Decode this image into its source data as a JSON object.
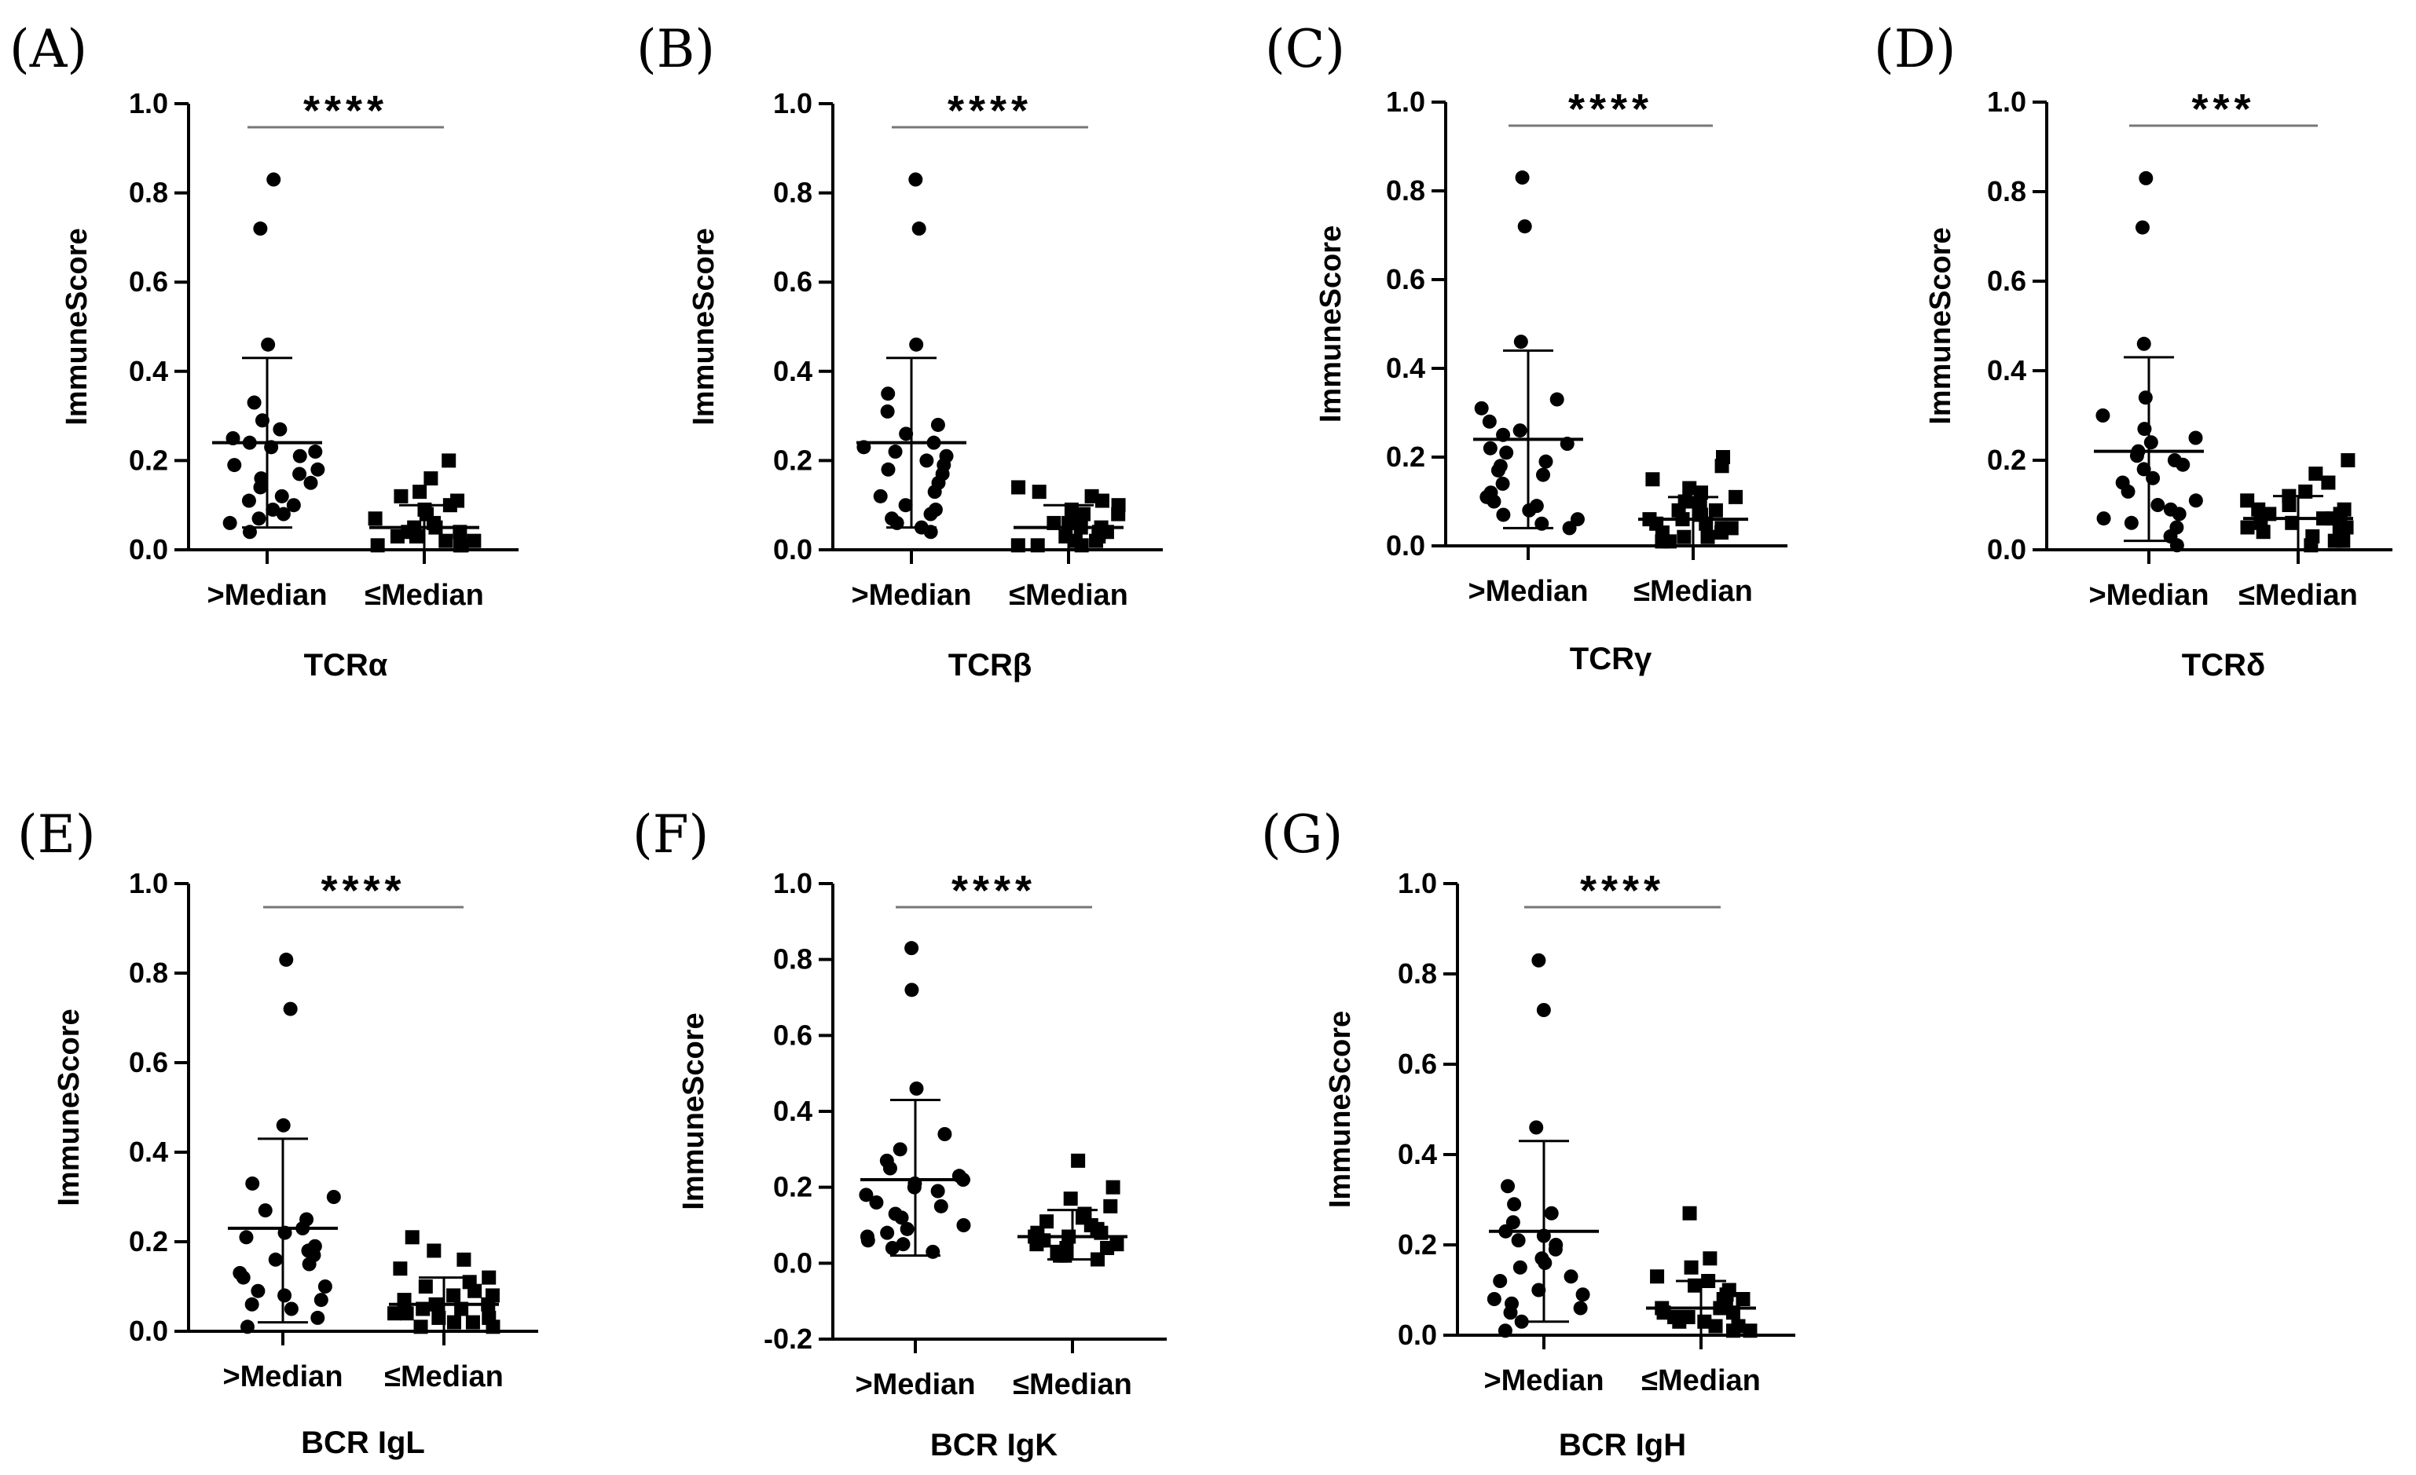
{
  "chart_data": [
    {
      "panel": "(A)",
      "type": "scatter",
      "ylabel": "ImmuneScore",
      "xlabel": "TCRα",
      "categories": [
        ">Median",
        "≤Median"
      ],
      "ylim": [
        0,
        1.0
      ],
      "yticks": [
        "0.0",
        "0.2",
        "0.4",
        "0.6",
        "0.8",
        "1.0"
      ],
      "significance": "****",
      "series": [
        {
          "name": ">Median",
          "marker": "circle",
          "mean": 0.24,
          "sd_low": 0.05,
          "sd_high": 0.43,
          "points": [
            0.83,
            0.72,
            0.46,
            0.33,
            0.29,
            0.27,
            0.25,
            0.24,
            0.23,
            0.22,
            0.21,
            0.19,
            0.18,
            0.17,
            0.16,
            0.15,
            0.14,
            0.12,
            0.11,
            0.1,
            0.09,
            0.08,
            0.07,
            0.06,
            0.04
          ]
        },
        {
          "name": "≤Median",
          "marker": "square",
          "mean": 0.05,
          "sd_low": 0.0,
          "sd_high": 0.1,
          "points": [
            0.2,
            0.16,
            0.13,
            0.12,
            0.11,
            0.1,
            0.09,
            0.08,
            0.08,
            0.07,
            0.06,
            0.05,
            0.05,
            0.04,
            0.04,
            0.03,
            0.03,
            0.02,
            0.02,
            0.01,
            0.01,
            0.01
          ]
        }
      ]
    },
    {
      "panel": "(B)",
      "type": "scatter",
      "ylabel": "ImmuneScore",
      "xlabel": "TCRβ",
      "categories": [
        ">Median",
        "≤Median"
      ],
      "ylim": [
        0,
        1.0
      ],
      "yticks": [
        "0.0",
        "0.2",
        "0.4",
        "0.6",
        "0.8",
        "1.0"
      ],
      "significance": "****",
      "series": [
        {
          "name": ">Median",
          "marker": "circle",
          "mean": 0.24,
          "sd_low": 0.05,
          "sd_high": 0.43,
          "points": [
            0.83,
            0.72,
            0.46,
            0.35,
            0.31,
            0.28,
            0.26,
            0.24,
            0.23,
            0.22,
            0.21,
            0.2,
            0.19,
            0.18,
            0.17,
            0.15,
            0.13,
            0.12,
            0.1,
            0.09,
            0.08,
            0.07,
            0.06,
            0.05,
            0.04
          ]
        },
        {
          "name": "≤Median",
          "marker": "square",
          "mean": 0.05,
          "sd_low": 0.0,
          "sd_high": 0.1,
          "points": [
            0.14,
            0.13,
            0.12,
            0.11,
            0.1,
            0.09,
            0.08,
            0.08,
            0.07,
            0.06,
            0.06,
            0.05,
            0.05,
            0.04,
            0.04,
            0.03,
            0.03,
            0.02,
            0.02,
            0.01,
            0.01,
            0.01
          ]
        }
      ]
    },
    {
      "panel": "(C)",
      "type": "scatter",
      "ylabel": "ImmuneScore",
      "xlabel": "TCRγ",
      "categories": [
        ">Median",
        "≤Median"
      ],
      "ylim": [
        0,
        1.0
      ],
      "yticks": [
        "0.0",
        "0.2",
        "0.4",
        "0.6",
        "0.8",
        "1.0"
      ],
      "significance": "****",
      "series": [
        {
          "name": ">Median",
          "marker": "circle",
          "mean": 0.24,
          "sd_low": 0.04,
          "sd_high": 0.44,
          "points": [
            0.83,
            0.72,
            0.46,
            0.33,
            0.31,
            0.28,
            0.26,
            0.25,
            0.23,
            0.22,
            0.21,
            0.19,
            0.18,
            0.17,
            0.16,
            0.14,
            0.12,
            0.11,
            0.1,
            0.09,
            0.08,
            0.07,
            0.06,
            0.05,
            0.04
          ]
        },
        {
          "name": "≤Median",
          "marker": "square",
          "mean": 0.06,
          "sd_low": 0.0,
          "sd_high": 0.11,
          "points": [
            0.2,
            0.18,
            0.15,
            0.13,
            0.12,
            0.11,
            0.1,
            0.09,
            0.08,
            0.08,
            0.07,
            0.06,
            0.06,
            0.05,
            0.05,
            0.04,
            0.04,
            0.03,
            0.03,
            0.02,
            0.02,
            0.01,
            0.01
          ]
        }
      ]
    },
    {
      "panel": "(D)",
      "type": "scatter",
      "ylabel": "ImmuneScore",
      "xlabel": "TCRδ",
      "categories": [
        ">Median",
        "≤Median"
      ],
      "ylim": [
        0,
        1.0
      ],
      "yticks": [
        "0.0",
        "0.2",
        "0.4",
        "0.6",
        "0.8",
        "1.0"
      ],
      "significance": "***",
      "series": [
        {
          "name": ">Median",
          "marker": "circle",
          "mean": 0.22,
          "sd_low": 0.02,
          "sd_high": 0.43,
          "points": [
            0.83,
            0.72,
            0.46,
            0.34,
            0.3,
            0.27,
            0.25,
            0.24,
            0.22,
            0.21,
            0.2,
            0.19,
            0.18,
            0.16,
            0.15,
            0.13,
            0.11,
            0.1,
            0.09,
            0.08,
            0.07,
            0.06,
            0.05,
            0.03,
            0.01
          ]
        },
        {
          "name": "≤Median",
          "marker": "square",
          "mean": 0.07,
          "sd_low": 0.0,
          "sd_high": 0.12,
          "points": [
            0.2,
            0.17,
            0.15,
            0.13,
            0.12,
            0.11,
            0.1,
            0.09,
            0.09,
            0.08,
            0.08,
            0.07,
            0.07,
            0.06,
            0.06,
            0.05,
            0.05,
            0.04,
            0.04,
            0.03,
            0.02,
            0.02,
            0.01
          ]
        }
      ]
    },
    {
      "panel": "(E)",
      "type": "scatter",
      "ylabel": "ImmuneScore",
      "xlabel": "BCR IgL",
      "categories": [
        ">Median",
        "≤Median"
      ],
      "ylim": [
        0,
        1.0
      ],
      "yticks": [
        "0.0",
        "0.2",
        "0.4",
        "0.6",
        "0.8",
        "1.0"
      ],
      "significance": "****",
      "series": [
        {
          "name": ">Median",
          "marker": "circle",
          "mean": 0.23,
          "sd_low": 0.02,
          "sd_high": 0.43,
          "points": [
            0.83,
            0.72,
            0.46,
            0.33,
            0.3,
            0.27,
            0.25,
            0.23,
            0.22,
            0.21,
            0.19,
            0.18,
            0.17,
            0.16,
            0.15,
            0.13,
            0.12,
            0.1,
            0.09,
            0.08,
            0.07,
            0.06,
            0.05,
            0.03,
            0.01
          ]
        },
        {
          "name": "≤Median",
          "marker": "square",
          "mean": 0.06,
          "sd_low": 0.0,
          "sd_high": 0.12,
          "points": [
            0.21,
            0.18,
            0.16,
            0.14,
            0.12,
            0.11,
            0.1,
            0.09,
            0.08,
            0.08,
            0.07,
            0.06,
            0.06,
            0.05,
            0.05,
            0.04,
            0.04,
            0.03,
            0.03,
            0.02,
            0.02,
            0.01,
            0.01
          ]
        }
      ]
    },
    {
      "panel": "(F)",
      "type": "scatter",
      "ylabel": "ImmuneScore",
      "xlabel": "BCR IgK",
      "categories": [
        ">Median",
        "≤Median"
      ],
      "ylim": [
        -0.2,
        1.0
      ],
      "yticks": [
        "-0.2",
        "0.0",
        "0.2",
        "0.4",
        "0.6",
        "0.8",
        "1.0"
      ],
      "significance": "****",
      "series": [
        {
          "name": ">Median",
          "marker": "circle",
          "mean": 0.22,
          "sd_low": 0.02,
          "sd_high": 0.43,
          "points": [
            0.83,
            0.72,
            0.46,
            0.34,
            0.3,
            0.27,
            0.25,
            0.23,
            0.22,
            0.21,
            0.2,
            0.19,
            0.18,
            0.16,
            0.15,
            0.13,
            0.12,
            0.1,
            0.09,
            0.08,
            0.07,
            0.06,
            0.05,
            0.04,
            0.03
          ]
        },
        {
          "name": "≤Median",
          "marker": "square",
          "mean": 0.07,
          "sd_low": 0.01,
          "sd_high": 0.14,
          "points": [
            0.27,
            0.2,
            0.17,
            0.15,
            0.13,
            0.12,
            0.11,
            0.1,
            0.09,
            0.08,
            0.08,
            0.07,
            0.07,
            0.06,
            0.06,
            0.05,
            0.05,
            0.04,
            0.04,
            0.03,
            0.02,
            0.02,
            0.01
          ]
        }
      ]
    },
    {
      "panel": "(G)",
      "type": "scatter",
      "ylabel": "ImmuneScore",
      "xlabel": "BCR IgH",
      "categories": [
        ">Median",
        "≤Median"
      ],
      "ylim": [
        0,
        1.0
      ],
      "yticks": [
        "0.0",
        "0.2",
        "0.4",
        "0.6",
        "0.8",
        "1.0"
      ],
      "significance": "****",
      "series": [
        {
          "name": ">Median",
          "marker": "circle",
          "mean": 0.23,
          "sd_low": 0.03,
          "sd_high": 0.43,
          "points": [
            0.83,
            0.72,
            0.46,
            0.33,
            0.29,
            0.27,
            0.25,
            0.23,
            0.22,
            0.21,
            0.2,
            0.19,
            0.17,
            0.16,
            0.15,
            0.13,
            0.12,
            0.1,
            0.09,
            0.08,
            0.07,
            0.06,
            0.05,
            0.03,
            0.01
          ]
        },
        {
          "name": "≤Median",
          "marker": "square",
          "mean": 0.06,
          "sd_low": 0.0,
          "sd_high": 0.12,
          "points": [
            0.27,
            0.17,
            0.15,
            0.13,
            0.12,
            0.11,
            0.1,
            0.09,
            0.08,
            0.08,
            0.07,
            0.06,
            0.06,
            0.05,
            0.05,
            0.04,
            0.04,
            0.03,
            0.03,
            0.02,
            0.02,
            0.01,
            0.01
          ]
        }
      ]
    }
  ]
}
